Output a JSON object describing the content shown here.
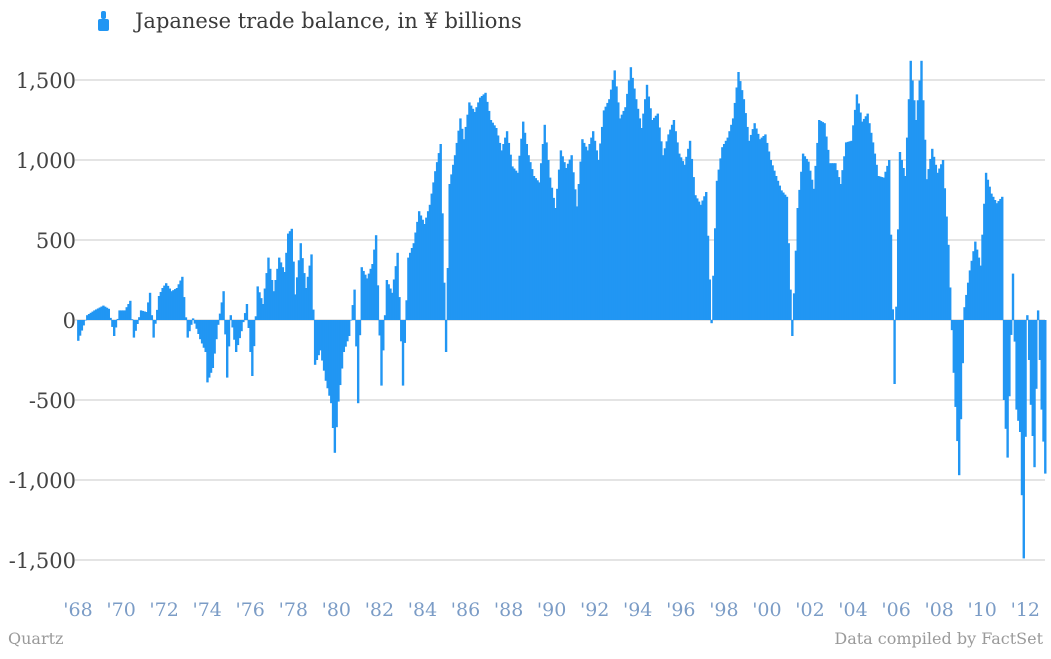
{
  "legend": {
    "label": "Japanese trade balance, in ¥ billions",
    "icon": "bar-chart-icon"
  },
  "footer": {
    "source_left": "Quartz",
    "source_right": "Data compiled by FactSet"
  },
  "colors": {
    "bar": "#2196f3",
    "grid": "#c8c8c8",
    "ytick": "#444444",
    "xtick": "#7b9cc6"
  },
  "chart_data": {
    "type": "bar",
    "ylim": [
      -1700,
      1700
    ],
    "yticks": [
      1500,
      1000,
      500,
      0,
      -500,
      -1000,
      -1500
    ],
    "ytick_labels": [
      "1,500",
      "1,000",
      "500",
      "0",
      "-500",
      "-1,000",
      "-1,500"
    ],
    "xticks": [
      1968,
      1970,
      1972,
      1974,
      1976,
      1978,
      1980,
      1982,
      1984,
      1986,
      1988,
      1990,
      1992,
      1994,
      1996,
      1998,
      2000,
      2002,
      2004,
      2006,
      2008,
      2010,
      2012
    ],
    "xtick_labels": [
      "'68",
      "'70",
      "'72",
      "'74",
      "'76",
      "'78",
      "'80",
      "'82",
      "'84",
      "'86",
      "'88",
      "'90",
      "'92",
      "'94",
      "'96",
      "'98",
      "'00",
      "'02",
      "'04",
      "'06",
      "'08",
      "'10",
      "'12"
    ],
    "x_start": "1968-01",
    "x_end": "2012-12",
    "series": [
      {
        "name": "Japanese trade balance, in ¥ billions",
        "points": [
          [
            "1968-01",
            -130
          ],
          [
            "1968-06",
            30
          ],
          [
            "1968-10",
            60
          ],
          [
            "1969-03",
            90
          ],
          [
            "1969-06",
            70
          ],
          [
            "1969-09",
            -100
          ],
          [
            "1969-12",
            60
          ],
          [
            "1970-03",
            60
          ],
          [
            "1970-06",
            120
          ],
          [
            "1970-08",
            -110
          ],
          [
            "1970-12",
            60
          ],
          [
            "1971-03",
            50
          ],
          [
            "1971-05",
            170
          ],
          [
            "1971-07",
            -110
          ],
          [
            "1971-10",
            150
          ],
          [
            "1971-12",
            200
          ],
          [
            "1972-02",
            230
          ],
          [
            "1972-05",
            180
          ],
          [
            "1972-08",
            200
          ],
          [
            "1972-11",
            270
          ],
          [
            "1973-02",
            -110
          ],
          [
            "1973-05",
            10
          ],
          [
            "1973-09",
            -120
          ],
          [
            "1973-12",
            -200
          ],
          [
            "1974-01",
            -390
          ],
          [
            "1974-04",
            -300
          ],
          [
            "1974-07",
            -30
          ],
          [
            "1974-10",
            180
          ],
          [
            "1974-12",
            -360
          ],
          [
            "1975-02",
            30
          ],
          [
            "1975-05",
            -200
          ],
          [
            "1975-08",
            -70
          ],
          [
            "1975-11",
            100
          ],
          [
            "1976-02",
            -350
          ],
          [
            "1976-05",
            210
          ],
          [
            "1976-08",
            100
          ],
          [
            "1976-11",
            390
          ],
          [
            "1977-02",
            180
          ],
          [
            "1977-05",
            390
          ],
          [
            "1977-08",
            300
          ],
          [
            "1977-10",
            540
          ],
          [
            "1977-12",
            570
          ],
          [
            "1978-02",
            160
          ],
          [
            "1978-05",
            480
          ],
          [
            "1978-08",
            200
          ],
          [
            "1978-11",
            410
          ],
          [
            "1979-01",
            -280
          ],
          [
            "1979-04",
            -190
          ],
          [
            "1979-07",
            -380
          ],
          [
            "1979-10",
            -520
          ],
          [
            "1979-12",
            -830
          ],
          [
            "1980-02",
            -510
          ],
          [
            "1980-05",
            -200
          ],
          [
            "1980-08",
            -100
          ],
          [
            "1980-11",
            190
          ],
          [
            "1981-01",
            -520
          ],
          [
            "1981-03",
            330
          ],
          [
            "1981-06",
            260
          ],
          [
            "1981-09",
            350
          ],
          [
            "1981-11",
            530
          ],
          [
            "1982-02",
            -410
          ],
          [
            "1982-05",
            250
          ],
          [
            "1982-08",
            170
          ],
          [
            "1982-11",
            420
          ],
          [
            "1983-02",
            -410
          ],
          [
            "1983-05",
            390
          ],
          [
            "1983-08",
            480
          ],
          [
            "1983-11",
            680
          ],
          [
            "1984-02",
            600
          ],
          [
            "1984-05",
            720
          ],
          [
            "1984-08",
            930
          ],
          [
            "1984-11",
            1100
          ],
          [
            "1985-02",
            -200
          ],
          [
            "1985-04",
            850
          ],
          [
            "1985-07",
            1030
          ],
          [
            "1985-10",
            1260
          ],
          [
            "1985-12",
            1130
          ],
          [
            "1986-03",
            1360
          ],
          [
            "1986-06",
            1300
          ],
          [
            "1986-09",
            1390
          ],
          [
            "1986-12",
            1420
          ],
          [
            "1987-03",
            1250
          ],
          [
            "1987-06",
            1200
          ],
          [
            "1987-09",
            1060
          ],
          [
            "1987-12",
            1180
          ],
          [
            "1988-03",
            960
          ],
          [
            "1988-06",
            920
          ],
          [
            "1988-09",
            1240
          ],
          [
            "1988-12",
            1030
          ],
          [
            "1989-03",
            900
          ],
          [
            "1989-06",
            860
          ],
          [
            "1989-09",
            1220
          ],
          [
            "1989-12",
            890
          ],
          [
            "1990-03",
            700
          ],
          [
            "1990-06",
            1060
          ],
          [
            "1990-09",
            950
          ],
          [
            "1990-12",
            1030
          ],
          [
            "1991-03",
            710
          ],
          [
            "1991-06",
            1130
          ],
          [
            "1991-09",
            1060
          ],
          [
            "1991-12",
            1180
          ],
          [
            "1992-03",
            1000
          ],
          [
            "1992-06",
            1310
          ],
          [
            "1992-09",
            1380
          ],
          [
            "1992-12",
            1560
          ],
          [
            "1993-03",
            1260
          ],
          [
            "1993-06",
            1330
          ],
          [
            "1993-09",
            1580
          ],
          [
            "1993-12",
            1380
          ],
          [
            "1994-03",
            1200
          ],
          [
            "1994-06",
            1470
          ],
          [
            "1994-09",
            1250
          ],
          [
            "1994-12",
            1290
          ],
          [
            "1995-03",
            1030
          ],
          [
            "1995-06",
            1160
          ],
          [
            "1995-09",
            1250
          ],
          [
            "1995-12",
            1040
          ],
          [
            "1996-03",
            970
          ],
          [
            "1996-06",
            1120
          ],
          [
            "1996-09",
            780
          ],
          [
            "1996-12",
            720
          ],
          [
            "1997-03",
            800
          ],
          [
            "1997-06",
            -20
          ],
          [
            "1997-09",
            870
          ],
          [
            "1997-12",
            1080
          ],
          [
            "1998-03",
            1140
          ],
          [
            "1998-06",
            1260
          ],
          [
            "1998-09",
            1550
          ],
          [
            "1998-12",
            1380
          ],
          [
            "1999-03",
            1120
          ],
          [
            "1999-06",
            1230
          ],
          [
            "1999-09",
            1130
          ],
          [
            "1999-12",
            1160
          ],
          [
            "2000-03",
            1000
          ],
          [
            "2000-06",
            900
          ],
          [
            "2000-09",
            810
          ],
          [
            "2000-12",
            770
          ],
          [
            "2001-03",
            -100
          ],
          [
            "2001-06",
            700
          ],
          [
            "2001-09",
            1040
          ],
          [
            "2001-12",
            990
          ],
          [
            "2002-03",
            820
          ],
          [
            "2002-06",
            1250
          ],
          [
            "2002-09",
            1230
          ],
          [
            "2002-12",
            980
          ],
          [
            "2003-03",
            980
          ],
          [
            "2003-06",
            850
          ],
          [
            "2003-09",
            1110
          ],
          [
            "2003-12",
            1120
          ],
          [
            "2004-03",
            1410
          ],
          [
            "2004-06",
            1240
          ],
          [
            "2004-09",
            1290
          ],
          [
            "2004-12",
            1110
          ],
          [
            "2005-03",
            900
          ],
          [
            "2005-06",
            890
          ],
          [
            "2005-09",
            1000
          ],
          [
            "2005-12",
            -400
          ],
          [
            "2006-03",
            1050
          ],
          [
            "2006-06",
            900
          ],
          [
            "2006-09",
            1620
          ],
          [
            "2006-12",
            1250
          ],
          [
            "2007-03",
            1620
          ],
          [
            "2007-06",
            880
          ],
          [
            "2007-09",
            1070
          ],
          [
            "2007-12",
            920
          ],
          [
            "2008-03",
            1000
          ],
          [
            "2008-06",
            470
          ],
          [
            "2008-09",
            -330
          ],
          [
            "2008-12",
            -970
          ],
          [
            "2009-03",
            80
          ],
          [
            "2009-06",
            310
          ],
          [
            "2009-09",
            490
          ],
          [
            "2009-12",
            340
          ],
          [
            "2010-03",
            920
          ],
          [
            "2010-06",
            790
          ],
          [
            "2010-09",
            730
          ],
          [
            "2010-12",
            770
          ],
          [
            "2011-01",
            -500
          ],
          [
            "2011-03",
            -860
          ],
          [
            "2011-06",
            290
          ],
          [
            "2011-08",
            -560
          ],
          [
            "2011-10",
            -700
          ],
          [
            "2011-12",
            -1490
          ],
          [
            "2012-02",
            30
          ],
          [
            "2012-04",
            -530
          ],
          [
            "2012-06",
            -920
          ],
          [
            "2012-08",
            60
          ],
          [
            "2012-10",
            -560
          ],
          [
            "2012-12",
            -960
          ]
        ]
      }
    ]
  }
}
